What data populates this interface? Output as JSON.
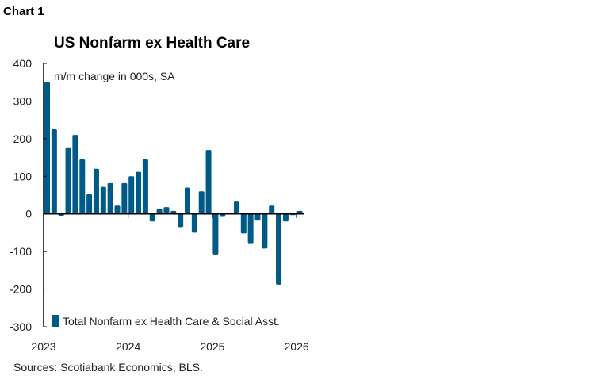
{
  "header": {
    "chart_number": "Chart 1",
    "title": "US Nonfarm ex Health Care"
  },
  "footer": {
    "sources": "Sources: Scotiabank Economics,  BLS."
  },
  "chart_data": {
    "type": "bar",
    "title": "US Nonfarm ex Health Care",
    "ylabel": "m/m change in 000s, SA",
    "xlabel": "",
    "ylim": [
      -300,
      400
    ],
    "yticks": [
      400,
      300,
      200,
      100,
      0,
      -100,
      -200,
      -300
    ],
    "xtick_labels": [
      "2023",
      "2024",
      "2025",
      "2026"
    ],
    "legend": "bottom-left",
    "grid": false,
    "color": "#005a87",
    "series": [
      {
        "name": "Total Nonfarm ex Health Care & Social Asst.",
        "x": [
          "2023-01",
          "2023-02",
          "2023-03",
          "2023-04",
          "2023-05",
          "2023-06",
          "2023-07",
          "2023-08",
          "2023-09",
          "2023-10",
          "2023-11",
          "2023-12",
          "2024-01",
          "2024-02",
          "2024-03",
          "2024-04",
          "2024-05",
          "2024-06",
          "2024-07",
          "2024-08",
          "2024-09",
          "2024-10",
          "2024-11",
          "2024-12",
          "2025-01",
          "2025-02",
          "2025-03",
          "2025-04",
          "2025-05",
          "2025-06",
          "2025-07",
          "2025-08",
          "2025-09",
          "2025-10",
          "2025-11",
          "2025-12",
          "2026-01"
        ],
        "values": [
          350,
          225,
          -5,
          175,
          210,
          145,
          52,
          120,
          72,
          82,
          22,
          82,
          100,
          112,
          145,
          -20,
          13,
          18,
          8,
          -35,
          70,
          -50,
          60,
          170,
          -108,
          -8,
          3,
          33,
          -52,
          -80,
          -18,
          -92,
          22,
          -188,
          -20,
          -3,
          8
        ]
      }
    ]
  }
}
